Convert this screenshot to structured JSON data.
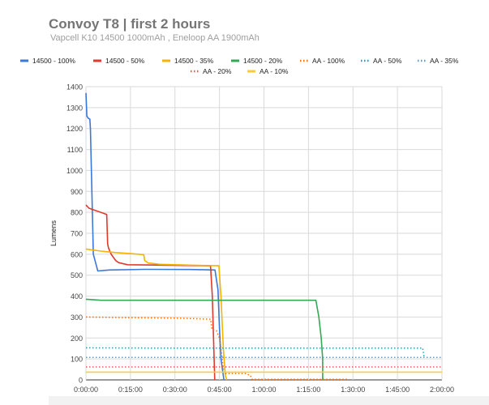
{
  "chart_data": {
    "type": "line",
    "title": "Convoy T8 | first 2 hours",
    "subtitle": "Vapcell K10 14500 1000mAh , Eneloop AA 1900mAh",
    "xlabel": "",
    "ylabel": "Lumens",
    "xlim": [
      0,
      120
    ],
    "ylim": [
      0,
      1400
    ],
    "x_ticks": [
      0,
      15,
      30,
      45,
      60,
      75,
      90,
      105,
      120
    ],
    "x_tick_labels": [
      "0:00:00",
      "0:15:00",
      "0:30:00",
      "0:45:00",
      "1:00:00",
      "1:15:00",
      "1:30:00",
      "1:45:00",
      "2:00:00"
    ],
    "y_ticks": [
      0,
      100,
      200,
      300,
      400,
      500,
      600,
      700,
      800,
      900,
      1000,
      1100,
      1200,
      1300,
      1400
    ],
    "grid": true,
    "legend_position": "top",
    "series": [
      {
        "name": "14500 - 100%",
        "color": "#3c78d8",
        "dash": "solid",
        "x": [
          0,
          0.3,
          0.7,
          1.3,
          1.5,
          2.0,
          2.5,
          4.0,
          8,
          20,
          35,
          43.5,
          44.5,
          45.0,
          45.5,
          46.5
        ],
        "y": [
          1370,
          1260,
          1250,
          1245,
          1200,
          900,
          600,
          520,
          525,
          528,
          527,
          525,
          430,
          250,
          100,
          0
        ]
      },
      {
        "name": "14500 - 50%",
        "color": "#e03a2f",
        "dash": "solid",
        "x": [
          0,
          1,
          3,
          7,
          7.3,
          7.6,
          8.5,
          10,
          11,
          14,
          25,
          42,
          42.6,
          43.0,
          43.4
        ],
        "y": [
          835,
          820,
          810,
          790,
          650,
          630,
          600,
          570,
          560,
          550,
          548,
          545,
          400,
          200,
          0
        ]
      },
      {
        "name": "14500 - 35%",
        "color": "#f4b400",
        "dash": "solid",
        "x": [
          0,
          5,
          10,
          15,
          19.5,
          19.8,
          21,
          25,
          35,
          44.8,
          45.5,
          46.3,
          47.0,
          47.5
        ],
        "y": [
          625,
          615,
          608,
          603,
          598,
          570,
          558,
          552,
          548,
          545,
          400,
          150,
          20,
          0
        ]
      },
      {
        "name": "14500 - 20%",
        "color": "#34a853",
        "dash": "solid",
        "x": [
          0,
          5,
          20,
          40,
          60,
          77.5,
          78.5,
          79.3,
          79.8,
          79.8
        ],
        "y": [
          385,
          380,
          380,
          380,
          380,
          380,
          300,
          200,
          100,
          0
        ]
      },
      {
        "name": "AA - 100%",
        "color": "#ff6d00",
        "dash": "dotted",
        "x": [
          0,
          10,
          30,
          42,
          42.5,
          44,
          45,
          45.5,
          46.5,
          47,
          54,
          55.5,
          56,
          88
        ],
        "y": [
          300,
          298,
          295,
          290,
          240,
          235,
          200,
          150,
          30,
          30,
          30,
          20,
          3,
          3
        ]
      },
      {
        "name": "AA - 50%",
        "color": "#00acc1",
        "dash": "dotted",
        "x": [
          0,
          20,
          40,
          60,
          80,
          100,
          113.5,
          114.0
        ],
        "y": [
          153,
          152,
          152,
          152,
          152,
          152,
          152,
          110
        ]
      },
      {
        "name": "AA - 35%",
        "color": "#5b9bd5",
        "dash": "dotted",
        "x": [
          0,
          20,
          60,
          100,
          120
        ],
        "y": [
          107,
          107,
          107,
          107,
          107
        ]
      },
      {
        "name": "AA - 20%",
        "color": "#f05a4a",
        "dash": "dotted",
        "x": [
          0,
          40,
          80,
          120
        ],
        "y": [
          62,
          62,
          62,
          62
        ]
      },
      {
        "name": "AA - 10%",
        "color": "#ffcc33",
        "dash": "solid",
        "x": [
          0,
          40,
          80,
          120
        ],
        "y": [
          37,
          37,
          37,
          37
        ]
      }
    ]
  }
}
